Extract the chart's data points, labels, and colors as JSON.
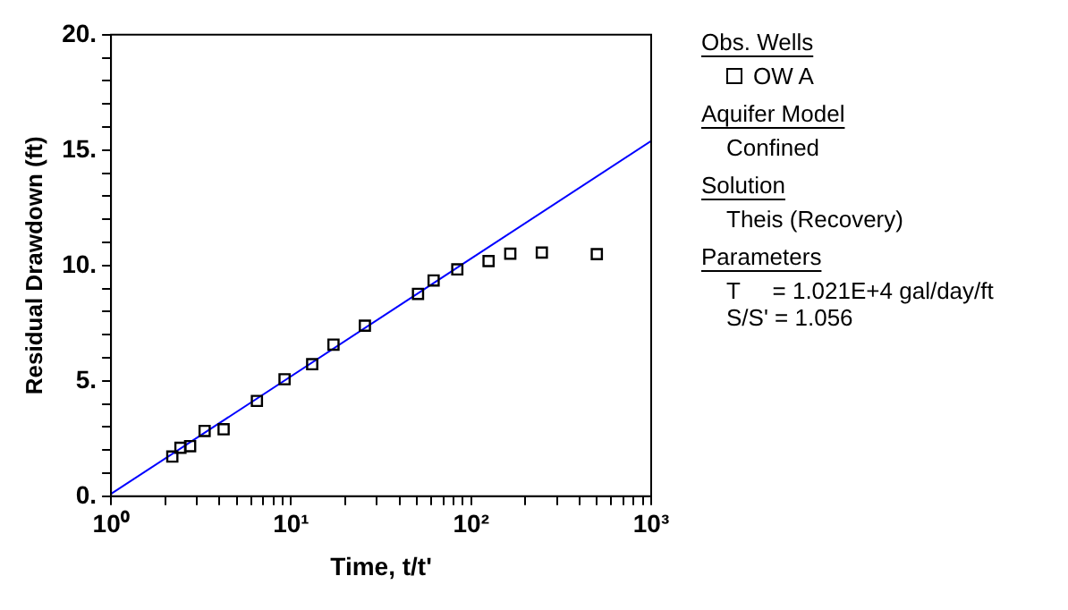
{
  "chart_data": {
    "type": "scatter",
    "xlabel": "Time, t/t'",
    "ylabel": "Residual Drawdown (ft)",
    "log": "x",
    "grid": false,
    "legend": "right",
    "legend_title": "Obs. Wells",
    "marker": "square",
    "xlim": [
      1,
      1000
    ],
    "ylim": [
      0,
      20
    ],
    "xticks": [
      {
        "value": 1,
        "label": "10⁰"
      },
      {
        "value": 2,
        "label": null
      },
      {
        "value": 3,
        "label": null
      },
      {
        "value": 4,
        "label": null
      },
      {
        "value": 5,
        "label": null
      },
      {
        "value": 6,
        "label": null
      },
      {
        "value": 7,
        "label": null
      },
      {
        "value": 8,
        "label": null
      },
      {
        "value": 9,
        "label": null
      },
      {
        "value": 10,
        "label": "10¹"
      },
      {
        "value": 20,
        "label": null
      },
      {
        "value": 30,
        "label": null
      },
      {
        "value": 40,
        "label": null
      },
      {
        "value": 50,
        "label": null
      },
      {
        "value": 60,
        "label": null
      },
      {
        "value": 70,
        "label": null
      },
      {
        "value": 80,
        "label": null
      },
      {
        "value": 90,
        "label": null
      },
      {
        "value": 100,
        "label": "10²"
      },
      {
        "value": 200,
        "label": null
      },
      {
        "value": 300,
        "label": null
      },
      {
        "value": 400,
        "label": null
      },
      {
        "value": 500,
        "label": null
      },
      {
        "value": 600,
        "label": null
      },
      {
        "value": 700,
        "label": null
      },
      {
        "value": 800,
        "label": null
      },
      {
        "value": 900,
        "label": null
      },
      {
        "value": 1000,
        "label": "10³"
      }
    ],
    "yticks": [
      {
        "value": 0,
        "label": "0."
      },
      {
        "value": 1,
        "label": null
      },
      {
        "value": 2,
        "label": null
      },
      {
        "value": 3,
        "label": null
      },
      {
        "value": 4,
        "label": null
      },
      {
        "value": 5,
        "label": "5."
      },
      {
        "value": 6,
        "label": null
      },
      {
        "value": 7,
        "label": null
      },
      {
        "value": 8,
        "label": null
      },
      {
        "value": 9,
        "label": null
      },
      {
        "value": 10,
        "label": "10."
      },
      {
        "value": 11,
        "label": null
      },
      {
        "value": 12,
        "label": null
      },
      {
        "value": 13,
        "label": null
      },
      {
        "value": 14,
        "label": null
      },
      {
        "value": 15,
        "label": "15."
      },
      {
        "value": 16,
        "label": null
      },
      {
        "value": 17,
        "label": null
      },
      {
        "value": 18,
        "label": null
      },
      {
        "value": 19,
        "label": null
      },
      {
        "value": 20,
        "label": "20."
      }
    ],
    "series": [
      {
        "name": "OW A",
        "type": "scatter",
        "color": "#000000",
        "x": [
          2.19,
          2.43,
          2.75,
          3.31,
          4.22,
          6.46,
          9.2,
          13.1,
          17.2,
          25.7,
          50.7,
          61.9,
          83.8,
          125,
          165,
          247,
          499
        ],
        "values": [
          1.72,
          2.1,
          2.17,
          2.83,
          2.9,
          4.13,
          5.07,
          5.72,
          6.57,
          7.39,
          8.77,
          9.35,
          9.83,
          10.19,
          10.51,
          10.56,
          10.49
        ]
      },
      {
        "type": "line",
        "color": "#0000ff",
        "marker": "none",
        "x": [
          1,
          1000
        ],
        "values": [
          0.1,
          15.4
        ]
      }
    ],
    "annotations": [
      "Aquifer Model",
      "Confined",
      "Solution",
      "Theis (Recovery)",
      "Parameters",
      "T     = 1.021E+4 gal/day/ft",
      "S/S' = 1.056"
    ]
  }
}
